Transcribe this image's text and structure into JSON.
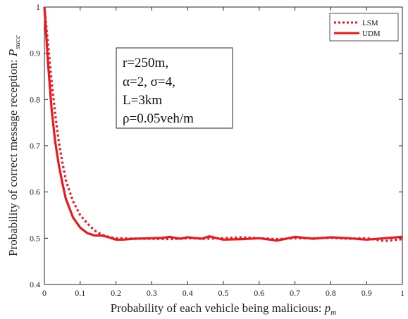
{
  "chart_data": {
    "type": "line",
    "xlabel": "Probability of each vehicle being malicious: ",
    "xlabel_symbol": "p",
    "xlabel_sub": "m",
    "ylabel": "Probability of correct message reception: ",
    "ylabel_symbol": "P",
    "ylabel_sub": "succ",
    "xlim": [
      0,
      1
    ],
    "ylim": [
      0.4,
      1
    ],
    "xticks": [
      "0",
      "0.1",
      "0.2",
      "0.3",
      "0.4",
      "0.5",
      "0.6",
      "0.7",
      "0.8",
      "0.9",
      "1"
    ],
    "yticks": [
      "0.4",
      "0.5",
      "0.6",
      "0.7",
      "0.8",
      "0.9",
      "1"
    ],
    "grid": false,
    "legend_position": "top-right",
    "series": [
      {
        "name": "LSM",
        "style": "dotted",
        "color": "#e8191f",
        "x": [
          0,
          0.01,
          0.02,
          0.03,
          0.04,
          0.05,
          0.06,
          0.08,
          0.1,
          0.12,
          0.14,
          0.16,
          0.18,
          0.2,
          0.22,
          0.25,
          0.3,
          0.35,
          0.4,
          0.45,
          0.5,
          0.55,
          0.6,
          0.65,
          0.7,
          0.75,
          0.8,
          0.85,
          0.9,
          0.95,
          1
        ],
        "y": [
          1.0,
          0.92,
          0.84,
          0.77,
          0.71,
          0.665,
          0.625,
          0.58,
          0.55,
          0.532,
          0.517,
          0.508,
          0.503,
          0.5,
          0.5,
          0.499,
          0.499,
          0.498,
          0.5,
          0.499,
          0.5,
          0.502,
          0.5,
          0.498,
          0.5,
          0.5,
          0.501,
          0.499,
          0.5,
          0.494,
          0.498
        ]
      },
      {
        "name": "UDM",
        "style": "solid",
        "color": "#e8191f",
        "x": [
          0,
          0.01,
          0.02,
          0.03,
          0.04,
          0.05,
          0.06,
          0.08,
          0.1,
          0.12,
          0.14,
          0.16,
          0.18,
          0.2,
          0.22,
          0.25,
          0.3,
          0.33,
          0.35,
          0.38,
          0.4,
          0.44,
          0.46,
          0.5,
          0.55,
          0.6,
          0.65,
          0.7,
          0.75,
          0.8,
          0.85,
          0.9,
          0.95,
          1
        ],
        "y": [
          1.0,
          0.88,
          0.78,
          0.71,
          0.66,
          0.62,
          0.585,
          0.545,
          0.523,
          0.511,
          0.506,
          0.506,
          0.502,
          0.497,
          0.497,
          0.499,
          0.5,
          0.501,
          0.503,
          0.499,
          0.502,
          0.499,
          0.504,
          0.497,
          0.498,
          0.5,
          0.495,
          0.503,
          0.499,
          0.502,
          0.5,
          0.497,
          0.5,
          0.503
        ]
      }
    ],
    "annotation_lines": [
      "r=250m,",
      "α=2, σ=4,",
      "L=3km",
      "ρ=0.05veh/m"
    ]
  }
}
